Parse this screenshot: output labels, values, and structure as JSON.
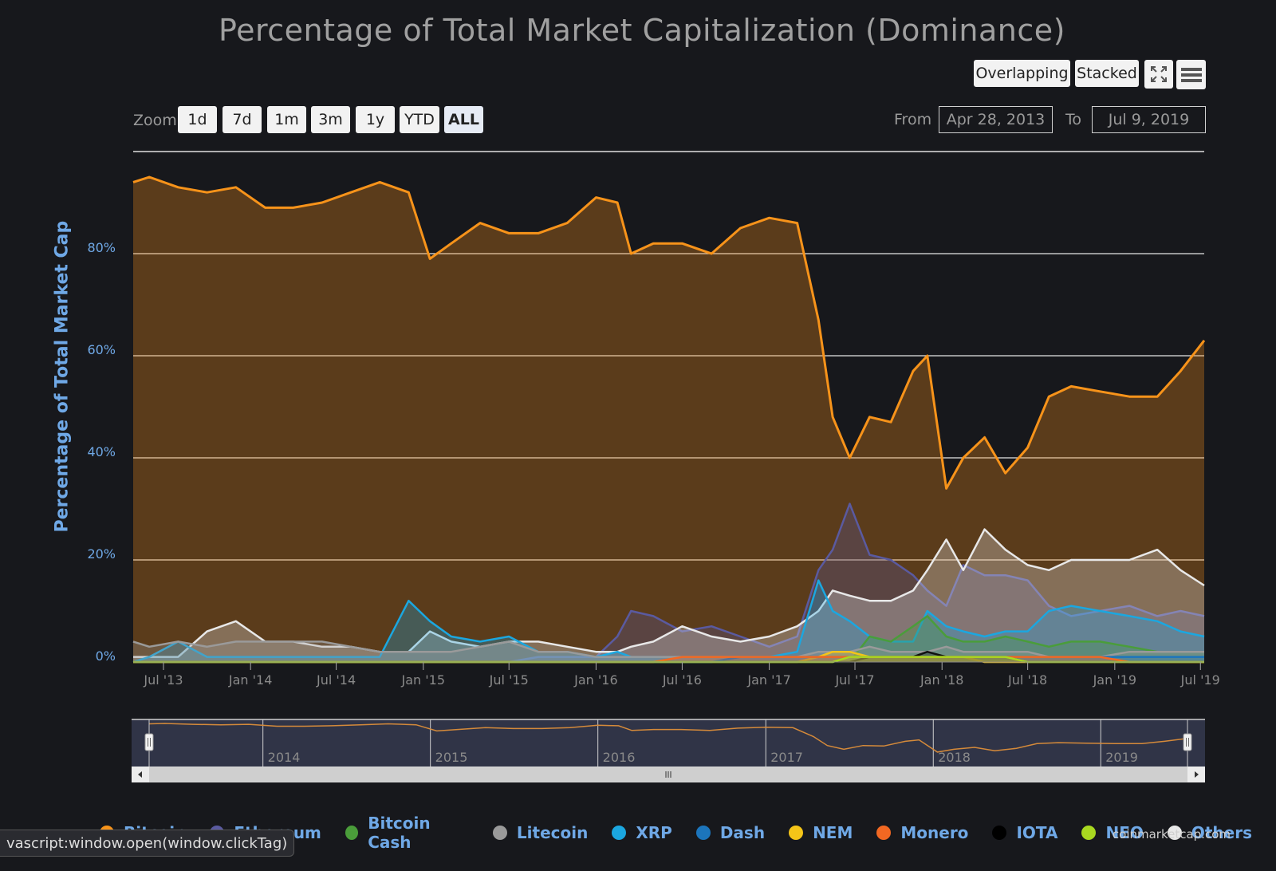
{
  "title": "Percentage of Total Market Capitalization (Dominance)",
  "view_buttons": [
    "Overlapping",
    "Stacked"
  ],
  "zoom": {
    "label": "Zoom",
    "buttons": [
      "1d",
      "7d",
      "1m",
      "3m",
      "1y",
      "YTD",
      "ALL"
    ],
    "active": "ALL"
  },
  "range": {
    "from_label": "From",
    "from": "Apr 28, 2013",
    "to_label": "To",
    "to": "Jul 9, 2019"
  },
  "navigator": {
    "years": [
      "2014",
      "2015",
      "2016",
      "2017",
      "2018",
      "2019"
    ]
  },
  "credit": "coinmarketcap.com",
  "status_bar": "vascript:window.open(window.clickTag)",
  "chart_data": {
    "type": "area",
    "ylabel": "Percentage of Total Market Cap",
    "ylim": [
      0,
      100
    ],
    "yticks": [
      "0%",
      "20%",
      "40%",
      "60%",
      "80%"
    ],
    "xticks": [
      "Jul '13",
      "Jan '14",
      "Jul '14",
      "Jan '15",
      "Jul '15",
      "Jan '16",
      "Jul '16",
      "Jan '17",
      "Jul '17",
      "Jan '18",
      "Jul '18",
      "Jan '19",
      "Jul '19"
    ],
    "x": [
      "2013-04-28",
      "2013-06-01",
      "2013-08-01",
      "2013-10-01",
      "2013-12-01",
      "2014-02-01",
      "2014-04-01",
      "2014-06-01",
      "2014-08-01",
      "2014-10-01",
      "2014-12-01",
      "2015-01-15",
      "2015-03-01",
      "2015-05-01",
      "2015-07-01",
      "2015-09-01",
      "2015-11-01",
      "2016-01-01",
      "2016-02-15",
      "2016-03-15",
      "2016-05-01",
      "2016-07-01",
      "2016-09-01",
      "2016-11-01",
      "2017-01-01",
      "2017-03-01",
      "2017-04-15",
      "2017-05-15",
      "2017-06-20",
      "2017-08-01",
      "2017-09-15",
      "2017-11-01",
      "2017-12-01",
      "2018-01-10",
      "2018-02-15",
      "2018-04-01",
      "2018-05-15",
      "2018-07-01",
      "2018-08-15",
      "2018-10-01",
      "2018-12-01",
      "2019-02-01",
      "2019-04-01",
      "2019-05-20",
      "2019-07-09"
    ],
    "series": [
      {
        "name": "Bitcoin",
        "color": "#f7931a",
        "values": [
          94,
          95,
          93,
          92,
          93,
          89,
          89,
          90,
          92,
          94,
          92,
          79,
          82,
          86,
          84,
          84,
          86,
          91,
          90,
          80,
          82,
          82,
          80,
          85,
          87,
          86,
          67,
          48,
          40,
          48,
          47,
          57,
          60,
          34,
          40,
          44,
          37,
          42,
          52,
          54,
          53,
          52,
          52,
          57,
          63
        ]
      },
      {
        "name": "Ethereum",
        "color": "#5a5aa0",
        "values": [
          0,
          0,
          0,
          0,
          0,
          0,
          0,
          0,
          0,
          0,
          0,
          0,
          0,
          0,
          0,
          1,
          1,
          1,
          5,
          10,
          9,
          6,
          7,
          5,
          3,
          5,
          18,
          22,
          31,
          21,
          20,
          17,
          14,
          11,
          19,
          17,
          17,
          16,
          11,
          9,
          10,
          11,
          9,
          10,
          9
        ]
      },
      {
        "name": "Bitcoin Cash",
        "color": "#4a9d3a",
        "values": [
          0,
          0,
          0,
          0,
          0,
          0,
          0,
          0,
          0,
          0,
          0,
          0,
          0,
          0,
          0,
          0,
          0,
          0,
          0,
          0,
          0,
          0,
          0,
          0,
          0,
          0,
          0,
          0,
          0,
          5,
          4,
          7,
          9,
          5,
          4,
          4,
          5,
          4,
          3,
          4,
          4,
          3,
          2,
          2,
          2
        ]
      },
      {
        "name": "Litecoin",
        "color": "#9a9a9a",
        "values": [
          4,
          3,
          4,
          3,
          4,
          4,
          4,
          4,
          3,
          2,
          2,
          2,
          2,
          3,
          4,
          2,
          2,
          1,
          1,
          1,
          1,
          1,
          1,
          1,
          1,
          1,
          2,
          2,
          2,
          3,
          2,
          2,
          2,
          3,
          2,
          2,
          2,
          2,
          1,
          1,
          1,
          2,
          2,
          2,
          2
        ]
      },
      {
        "name": "XRP",
        "color": "#1ba7e0",
        "values": [
          0,
          1,
          4,
          1,
          1,
          1,
          1,
          1,
          1,
          1,
          12,
          8,
          5,
          4,
          5,
          2,
          2,
          1,
          2,
          1,
          1,
          1,
          1,
          1,
          1,
          2,
          16,
          10,
          8,
          5,
          4,
          4,
          10,
          7,
          6,
          5,
          6,
          6,
          10,
          11,
          10,
          9,
          8,
          6,
          5
        ]
      },
      {
        "name": "Dash",
        "color": "#1c75bc",
        "values": [
          0,
          0,
          0,
          0,
          0,
          0,
          0,
          0,
          0,
          0,
          0,
          0,
          0,
          0,
          0,
          0,
          0,
          0,
          0,
          0,
          0,
          0,
          0,
          1,
          1,
          1,
          1,
          1,
          1,
          1,
          1,
          1,
          1,
          1,
          1,
          1,
          1,
          1,
          1,
          1,
          1,
          1,
          1,
          1,
          1
        ]
      },
      {
        "name": "NEM",
        "color": "#f5c518",
        "values": [
          0,
          0,
          0,
          0,
          0,
          0,
          0,
          0,
          0,
          0,
          0,
          0,
          0,
          0,
          0,
          0,
          0,
          0,
          0,
          0,
          0,
          0,
          0,
          0,
          0,
          0,
          1,
          2,
          2,
          1,
          1,
          1,
          1,
          1,
          1,
          0,
          0,
          0,
          0,
          0,
          0,
          0,
          0,
          0,
          0
        ]
      },
      {
        "name": "Monero",
        "color": "#f26822",
        "values": [
          0,
          0,
          0,
          0,
          0,
          0,
          0,
          0,
          0,
          0,
          0,
          0,
          0,
          0,
          0,
          0,
          0,
          0,
          0,
          0,
          0,
          1,
          1,
          1,
          1,
          1,
          1,
          1,
          1,
          1,
          1,
          1,
          1,
          1,
          1,
          1,
          1,
          1,
          1,
          1,
          1,
          0,
          0,
          0,
          0
        ]
      },
      {
        "name": "IOTA",
        "color": "#111111",
        "values": [
          0,
          0,
          0,
          0,
          0,
          0,
          0,
          0,
          0,
          0,
          0,
          0,
          0,
          0,
          0,
          0,
          0,
          0,
          0,
          0,
          0,
          0,
          0,
          0,
          0,
          0,
          0,
          0,
          0,
          1,
          1,
          1,
          2,
          1,
          1,
          1,
          1,
          0,
          0,
          0,
          0,
          0,
          0,
          0,
          0
        ]
      },
      {
        "name": "NEO",
        "color": "#a8d820",
        "values": [
          0,
          0,
          0,
          0,
          0,
          0,
          0,
          0,
          0,
          0,
          0,
          0,
          0,
          0,
          0,
          0,
          0,
          0,
          0,
          0,
          0,
          0,
          0,
          0,
          0,
          0,
          0,
          0,
          1,
          1,
          1,
          1,
          1,
          1,
          1,
          1,
          1,
          0,
          0,
          0,
          0,
          0,
          0,
          0,
          0
        ]
      },
      {
        "name": "Others",
        "color": "#e8e8e8",
        "values": [
          1,
          1,
          1,
          6,
          8,
          4,
          4,
          3,
          3,
          2,
          2,
          6,
          4,
          3,
          4,
          4,
          3,
          2,
          2,
          3,
          4,
          7,
          5,
          4,
          5,
          7,
          10,
          14,
          13,
          12,
          12,
          14,
          18,
          24,
          18,
          26,
          22,
          19,
          18,
          20,
          20,
          20,
          22,
          18,
          15
        ]
      }
    ],
    "grid": true,
    "legend_position": "bottom"
  }
}
